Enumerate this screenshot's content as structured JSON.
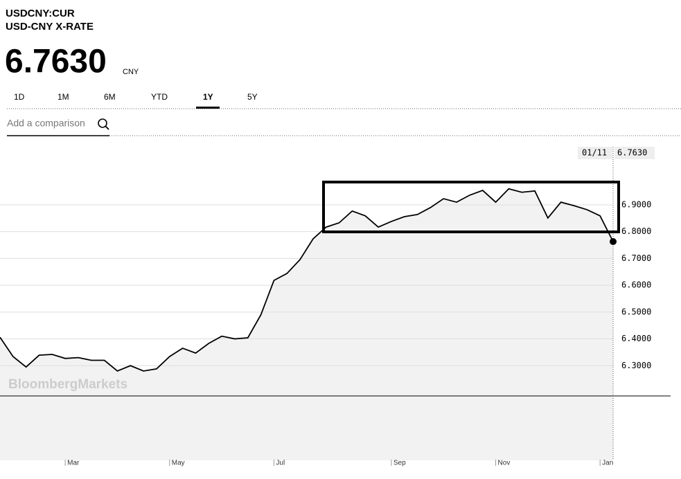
{
  "header": {
    "ticker": "USDCNY:CUR",
    "name": "USD-CNY X-RATE",
    "price": "6.7630",
    "currency": "CNY"
  },
  "tabs": [
    "1D",
    "1M",
    "6M",
    "YTD",
    "1Y",
    "5Y"
  ],
  "active_tab": "1Y",
  "search_placeholder": "Add a comparison",
  "watermark": "BloombergMarkets",
  "chart_data": {
    "type": "line",
    "cursor_date": "01/11",
    "categories": [
      null,
      null,
      null,
      null,
      null,
      "Mar",
      null,
      null,
      null,
      null,
      null,
      null,
      null,
      "May",
      null,
      null,
      null,
      null,
      null,
      null,
      null,
      "Jul",
      null,
      null,
      null,
      null,
      null,
      null,
      null,
      null,
      "Sep",
      null,
      null,
      null,
      null,
      null,
      null,
      null,
      "Nov",
      null,
      null,
      null,
      null,
      null,
      null,
      null,
      "Jan",
      null
    ],
    "series": [
      {
        "name": "USD-CNY",
        "color": "#000000",
        "values": [
          6.406,
          6.334,
          6.295,
          6.339,
          6.342,
          6.327,
          6.33,
          6.32,
          6.32,
          6.28,
          6.3,
          6.28,
          6.288,
          6.334,
          6.365,
          6.347,
          6.383,
          6.41,
          6.4,
          6.404,
          6.49,
          6.618,
          6.644,
          6.696,
          6.773,
          6.817,
          6.833,
          6.877,
          6.859,
          6.817,
          6.838,
          6.856,
          6.864,
          6.89,
          6.923,
          6.91,
          6.936,
          6.954,
          6.91,
          6.96,
          6.947,
          6.952,
          6.851,
          6.91,
          6.897,
          6.882,
          6.859,
          6.763
        ]
      }
    ],
    "ylim": [
      6.187,
      7.122
    ],
    "yticks": [
      {
        "value": 6.3,
        "label": "6.3000"
      },
      {
        "value": 6.4,
        "label": "6.4000"
      },
      {
        "value": 6.5,
        "label": "6.5000"
      },
      {
        "value": 6.6,
        "label": "6.6000"
      },
      {
        "value": 6.7,
        "label": "6.7000"
      },
      {
        "value": 6.8,
        "label": "6.8000"
      },
      {
        "value": 6.9,
        "label": "6.9000"
      }
    ],
    "grid": true
  }
}
